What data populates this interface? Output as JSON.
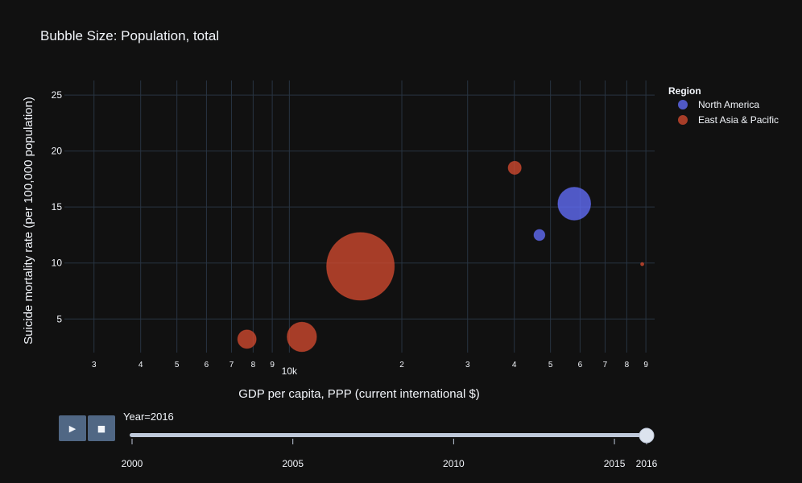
{
  "chart_data": {
    "type": "scatter",
    "title": "Bubble Size: Population, total",
    "xlabel": "GDP per capita, PPP (current international $)",
    "ylabel": "Suicide mortality rate (per 100,000 population)",
    "x_scale": "log",
    "xlim": [
      2500,
      95000
    ],
    "ylim": [
      2,
      26.3
    ],
    "x_ticks": [
      {
        "value": 3000,
        "label": "3"
      },
      {
        "value": 4000,
        "label": "4"
      },
      {
        "value": 5000,
        "label": "5"
      },
      {
        "value": 6000,
        "label": "6"
      },
      {
        "value": 7000,
        "label": "7"
      },
      {
        "value": 8000,
        "label": "8"
      },
      {
        "value": 9000,
        "label": "9"
      },
      {
        "value": 10000,
        "label": "10k"
      },
      {
        "value": 20000,
        "label": "2"
      },
      {
        "value": 30000,
        "label": "3"
      },
      {
        "value": 40000,
        "label": "4"
      },
      {
        "value": 50000,
        "label": "5"
      },
      {
        "value": 60000,
        "label": "6"
      },
      {
        "value": 70000,
        "label": "7"
      },
      {
        "value": 80000,
        "label": "8"
      },
      {
        "value": 90000,
        "label": "9"
      }
    ],
    "y_ticks": [
      5,
      10,
      15,
      20,
      25
    ],
    "grid": true,
    "legend": {
      "title": "Region",
      "position": "top-right"
    },
    "size_label": "Population, total",
    "series": [
      {
        "name": "North America",
        "color": "#636efa",
        "points": [
          {
            "x": 57900,
            "y": 15.3,
            "size": 323000000
          },
          {
            "x": 46700,
            "y": 12.5,
            "size": 36000000
          }
        ]
      },
      {
        "name": "East Asia & Pacific",
        "color": "#d24a2f",
        "points": [
          {
            "x": 40100,
            "y": 18.5,
            "size": 51000000
          },
          {
            "x": 88000,
            "y": 9.9,
            "size": 600000
          },
          {
            "x": 15500,
            "y": 9.7,
            "size": 1380000000
          },
          {
            "x": 10800,
            "y": 3.4,
            "size": 260000000
          },
          {
            "x": 7700,
            "y": 3.2,
            "size": 103000000
          }
        ]
      }
    ]
  },
  "slider": {
    "current_label": "Year=2016",
    "value": 2016,
    "min": 2000,
    "max": 2016,
    "ticks": [
      "2000",
      "2005",
      "2010",
      "2015",
      "2016"
    ]
  },
  "controls": {
    "play_icon": "play-icon",
    "stop_icon": "stop-icon"
  }
}
